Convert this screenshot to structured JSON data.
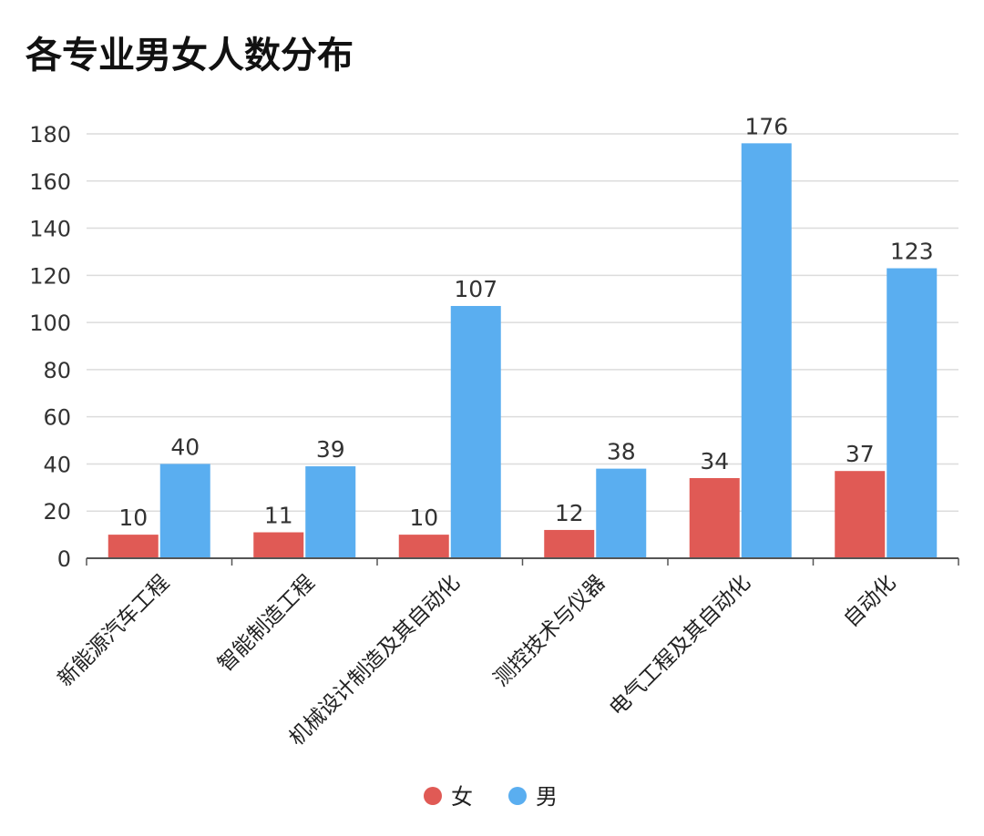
{
  "chart_data": {
    "type": "bar",
    "title": "各专业男女人数分布",
    "xlabel": "",
    "ylabel": "",
    "categories": [
      "新能源汽车工程",
      "智能制造工程",
      "机械设计制造及其自动化",
      "测控技术与仪器",
      "电气工程及其自动化",
      "自动化"
    ],
    "series": [
      {
        "name": "女",
        "color": "#e05a55",
        "values": [
          10,
          11,
          10,
          12,
          34,
          37
        ]
      },
      {
        "name": "男",
        "color": "#5aaef0",
        "values": [
          40,
          39,
          107,
          38,
          176,
          123
        ]
      }
    ],
    "ylim": [
      0,
      180
    ],
    "yticks": [
      0,
      20,
      40,
      60,
      80,
      100,
      120,
      140,
      160,
      180
    ],
    "grid": true,
    "legend": "bottom-center"
  }
}
